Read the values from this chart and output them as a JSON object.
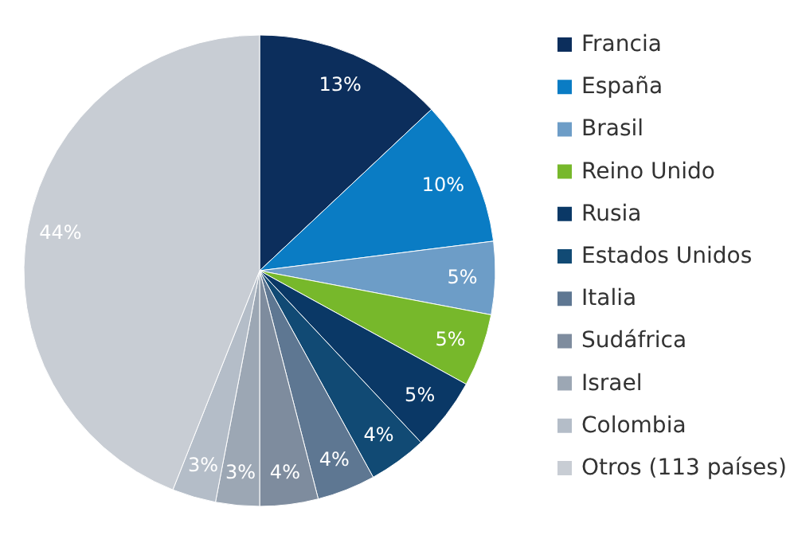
{
  "chart_data": {
    "type": "pie",
    "categories": [
      "Francia",
      "España",
      "Brasil",
      "Reino Unido",
      "Rusia",
      "Estados Unidos",
      "Italia",
      "Sudáfrica",
      "Israel",
      "Colombia",
      "Otros (113 países)"
    ],
    "values": [
      13,
      10,
      5,
      5,
      5,
      4,
      4,
      4,
      3,
      3,
      44
    ],
    "colors": [
      "#0c2e5c",
      "#0a7cc4",
      "#6d9dc7",
      "#77b82b",
      "#0a3866",
      "#114a74",
      "#5e7792",
      "#7e8c9e",
      "#9ca7b4",
      "#b4bdc8",
      "#c8cdd4"
    ],
    "value_labels": [
      "13%",
      "10%",
      "5%",
      "5%",
      "5%",
      "4%",
      "4%",
      "4%",
      "3%",
      "3%",
      "44%"
    ],
    "legend": "right"
  }
}
